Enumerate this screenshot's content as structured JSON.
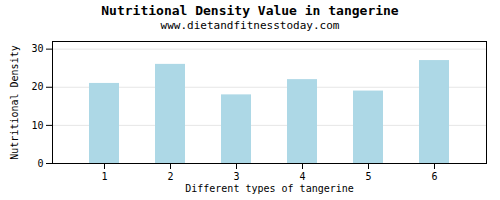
{
  "chart_data": {
    "type": "bar",
    "title": "Nutritional Density Value in tangerine",
    "subtitle": "www.dietandfitnesstoday.com",
    "xlabel": "Different types of tangerine",
    "ylabel": "Nutritional Density",
    "categories": [
      "1",
      "2",
      "3",
      "4",
      "5",
      "6"
    ],
    "values": [
      21,
      26,
      18,
      22,
      19,
      27
    ],
    "color": "#add8e6",
    "ylim": [
      0,
      32
    ],
    "yticks": [
      0,
      10,
      20,
      30
    ],
    "grid": true
  }
}
